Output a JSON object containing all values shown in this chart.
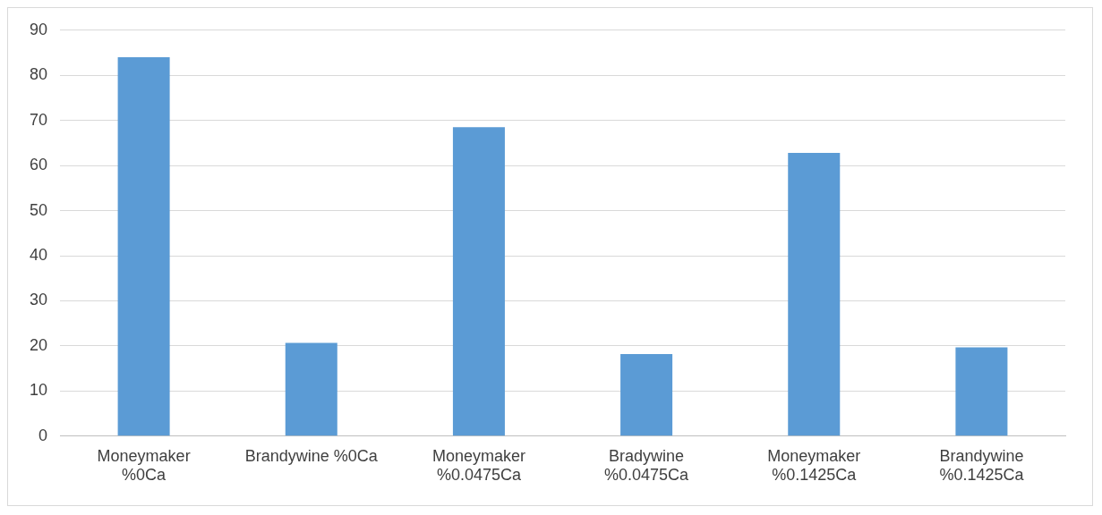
{
  "chart_data": {
    "type": "bar",
    "categories": [
      "Moneymaker %0Ca",
      "Brandywine %0Ca",
      "Moneymaker %0.0475Ca",
      "Bradywine %0.0475Ca",
      "Moneymaker %0.1425Ca",
      "Brandywine %0.1425Ca"
    ],
    "values": [
      84,
      20.7,
      68.5,
      18.2,
      62.8,
      19.7
    ],
    "color": "#5b9bd5",
    "ylim": [
      0,
      90
    ],
    "yticks": [
      0,
      10,
      20,
      30,
      40,
      50,
      60,
      70,
      80,
      90
    ],
    "grid": "y",
    "legend": false
  }
}
